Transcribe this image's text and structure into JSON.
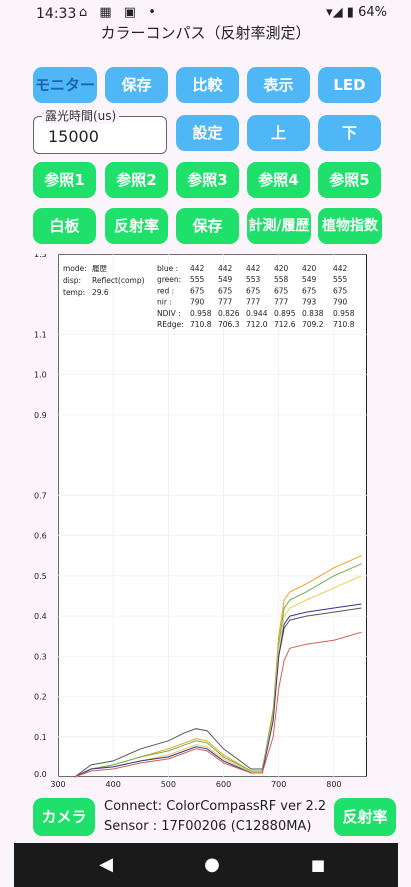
{
  "status": {
    "time": "14:33",
    "icons_left": "⌂ ▦ ▣ •",
    "battery": "64%",
    "signal": "▾◢ ▮"
  },
  "title": "カラーコンパス（反射率測定）",
  "row1": [
    "モニター",
    "保存",
    "比較",
    "表示",
    "LED"
  ],
  "exposure": {
    "label": "露光時間(us)",
    "value": "15000"
  },
  "row2": [
    "設定",
    "上",
    "下"
  ],
  "row3": [
    "参照1",
    "参照2",
    "参照3",
    "参照4",
    "参照5"
  ],
  "row4": [
    "白板",
    "反射率",
    "保存",
    "計測/履歴",
    "植物指数"
  ],
  "info": {
    "mode_label": "mode:",
    "mode_value": "履歴",
    "disp_label": "disp:",
    "disp_value": "Reflect(comp)",
    "temp_label": "temp:",
    "temp_value": "29.6"
  },
  "table": {
    "rows": [
      {
        "label": "blue :",
        "values": [
          "442",
          "442",
          "442",
          "420",
          "420",
          "442"
        ]
      },
      {
        "label": "green:",
        "values": [
          "555",
          "549",
          "553",
          "558",
          "549",
          "555"
        ]
      },
      {
        "label": "red :",
        "values": [
          "675",
          "675",
          "675",
          "675",
          "675",
          "675"
        ]
      },
      {
        "label": "nir :",
        "values": [
          "790",
          "777",
          "777",
          "777",
          "793",
          "790"
        ]
      },
      {
        "label": "NDIV :",
        "values": [
          "0.958",
          "0.826",
          "0.944",
          "0.895",
          "0.838",
          "0.958"
        ]
      },
      {
        "label": "REdge:",
        "values": [
          "710.8",
          "706.3",
          "712.0",
          "712.6",
          "709.2",
          "710.8"
        ]
      }
    ]
  },
  "chart_data": {
    "type": "line",
    "x_ticks": [
      "300",
      "400",
      "500",
      "600",
      "700",
      "800"
    ],
    "y_ticks": [
      "0.0",
      "0.1",
      "0.2",
      "0.3",
      "0.4",
      "0.5",
      "0.6",
      "0.7",
      "0.9",
      "1.0",
      "1.1",
      "1.3"
    ],
    "xlim": [
      300,
      860
    ],
    "ylim": [
      0.0,
      1.3
    ],
    "grid": true,
    "series": [
      {
        "color": "#555555",
        "x": [
          330,
          360,
          400,
          450,
          500,
          530,
          550,
          570,
          600,
          650,
          670,
          690,
          700,
          710,
          720,
          750,
          800,
          850
        ],
        "y": [
          0.0,
          0.03,
          0.04,
          0.07,
          0.09,
          0.11,
          0.12,
          0.115,
          0.07,
          0.02,
          0.02,
          0.15,
          0.3,
          0.37,
          0.39,
          0.4,
          0.41,
          0.42
        ]
      },
      {
        "color": "#f0a020",
        "x": [
          330,
          360,
          400,
          450,
          500,
          530,
          550,
          570,
          600,
          650,
          670,
          690,
          700,
          710,
          720,
          750,
          800,
          850
        ],
        "y": [
          0.0,
          0.02,
          0.03,
          0.05,
          0.07,
          0.085,
          0.095,
          0.09,
          0.055,
          0.015,
          0.015,
          0.17,
          0.35,
          0.44,
          0.46,
          0.48,
          0.52,
          0.55
        ]
      },
      {
        "color": "#6ab04c",
        "x": [
          330,
          360,
          400,
          450,
          500,
          530,
          550,
          570,
          600,
          650,
          670,
          690,
          700,
          710,
          720,
          750,
          800,
          850
        ],
        "y": [
          0.0,
          0.02,
          0.03,
          0.05,
          0.065,
          0.08,
          0.09,
          0.085,
          0.05,
          0.015,
          0.015,
          0.16,
          0.33,
          0.42,
          0.44,
          0.46,
          0.5,
          0.53
        ]
      },
      {
        "color": "#e8d050",
        "x": [
          330,
          360,
          400,
          450,
          500,
          530,
          550,
          570,
          600,
          650,
          670,
          690,
          700,
          710,
          720,
          750,
          800,
          850
        ],
        "y": [
          0.0,
          0.02,
          0.025,
          0.04,
          0.055,
          0.07,
          0.08,
          0.075,
          0.045,
          0.012,
          0.012,
          0.15,
          0.32,
          0.4,
          0.42,
          0.44,
          0.47,
          0.5
        ]
      },
      {
        "color": "#333399",
        "x": [
          330,
          360,
          400,
          450,
          500,
          530,
          550,
          570,
          600,
          650,
          670,
          690,
          700,
          710,
          720,
          750,
          800,
          850
        ],
        "y": [
          0.0,
          0.02,
          0.025,
          0.04,
          0.05,
          0.065,
          0.075,
          0.07,
          0.04,
          0.01,
          0.01,
          0.14,
          0.3,
          0.38,
          0.4,
          0.41,
          0.42,
          0.43
        ]
      },
      {
        "color": "#d06050",
        "x": [
          330,
          360,
          400,
          450,
          500,
          530,
          550,
          570,
          600,
          650,
          670,
          690,
          700,
          710,
          720,
          750,
          800,
          850
        ],
        "y": [
          0.0,
          0.015,
          0.02,
          0.035,
          0.045,
          0.06,
          0.07,
          0.065,
          0.035,
          0.01,
          0.01,
          0.1,
          0.22,
          0.29,
          0.32,
          0.33,
          0.34,
          0.36
        ]
      }
    ]
  },
  "footer": {
    "camera": "カメラ",
    "reflect": "反射率",
    "connect": "Connect: ColorCompassRF ver 2.2",
    "sensor": "Sensor : 17F00206 (C12880MA)"
  },
  "nav": {
    "back_icon": "◀",
    "home_icon": "●",
    "recents_icon": "■"
  }
}
